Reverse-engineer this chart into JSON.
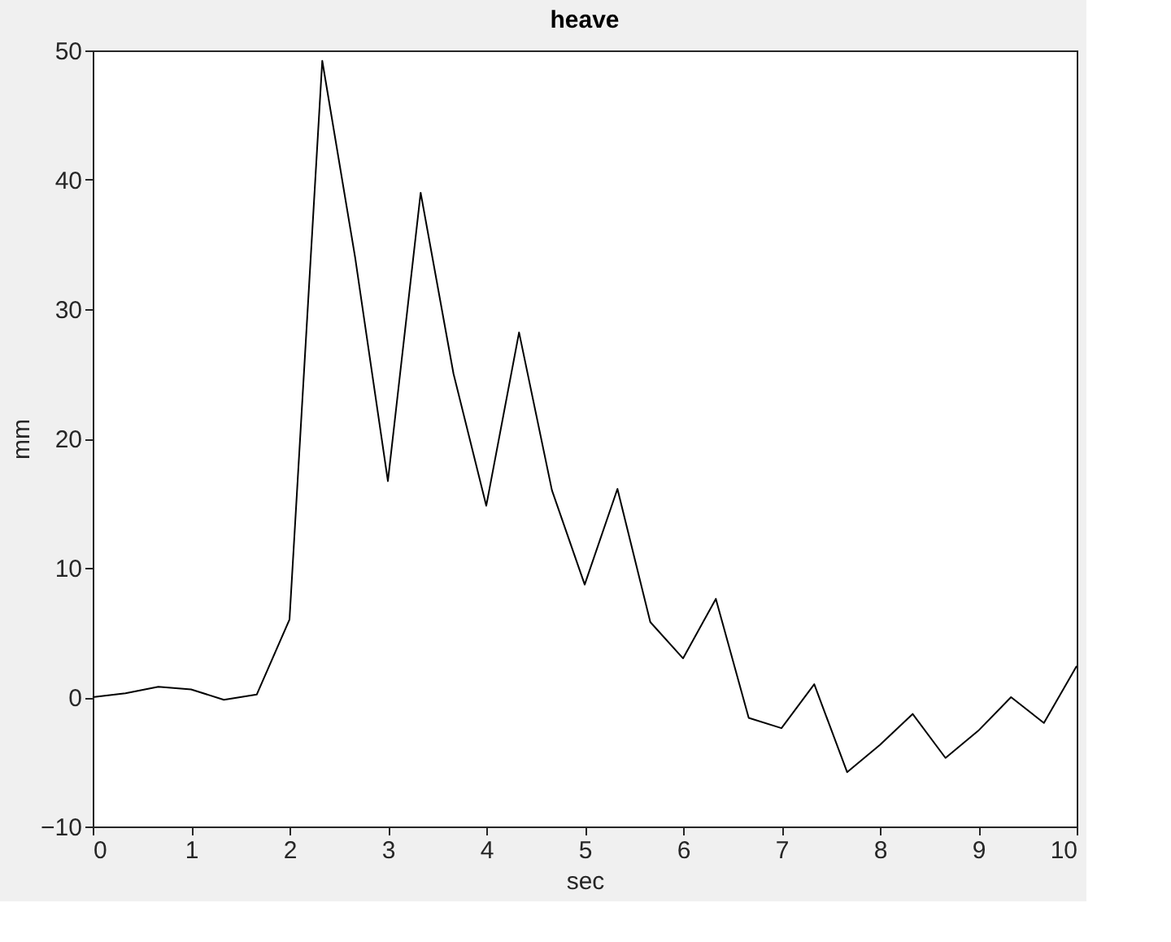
{
  "chart_data": {
    "type": "line",
    "title": "heave",
    "xlabel": "sec",
    "ylabel": "mm",
    "x": [
      0,
      0.333,
      0.667,
      1,
      1.333,
      1.667,
      2,
      2.333,
      2.667,
      3,
      3.333,
      3.667,
      4,
      4.333,
      4.667,
      5,
      5.333,
      5.667,
      6,
      6.333,
      6.667,
      7,
      7.333,
      7.667,
      8,
      8.333,
      8.667,
      9,
      9.333,
      9.667,
      10
    ],
    "series": [
      {
        "color": "#000000",
        "values": [
          0,
          0.3,
          0.8,
          0.6,
          -0.2,
          0.2,
          6,
          49.2,
          34,
          16.7,
          39,
          25,
          14.8,
          28.2,
          16,
          8.7,
          16.1,
          5.8,
          3,
          7.6,
          -1.6,
          -2.4,
          1,
          -5.8,
          -3.7,
          -1.3,
          -4.7,
          -2.6,
          0,
          -2,
          2.4
        ]
      }
    ],
    "xlim": [
      0,
      10
    ],
    "xticks": [
      0,
      1,
      2,
      3,
      4,
      5,
      6,
      7,
      8,
      9,
      10
    ],
    "ylim": [
      -10,
      50
    ],
    "yticks": [
      -10,
      0,
      10,
      20,
      30,
      40,
      50
    ],
    "grid": false,
    "legend": false,
    "marker": "none",
    "line_style": "solid"
  }
}
